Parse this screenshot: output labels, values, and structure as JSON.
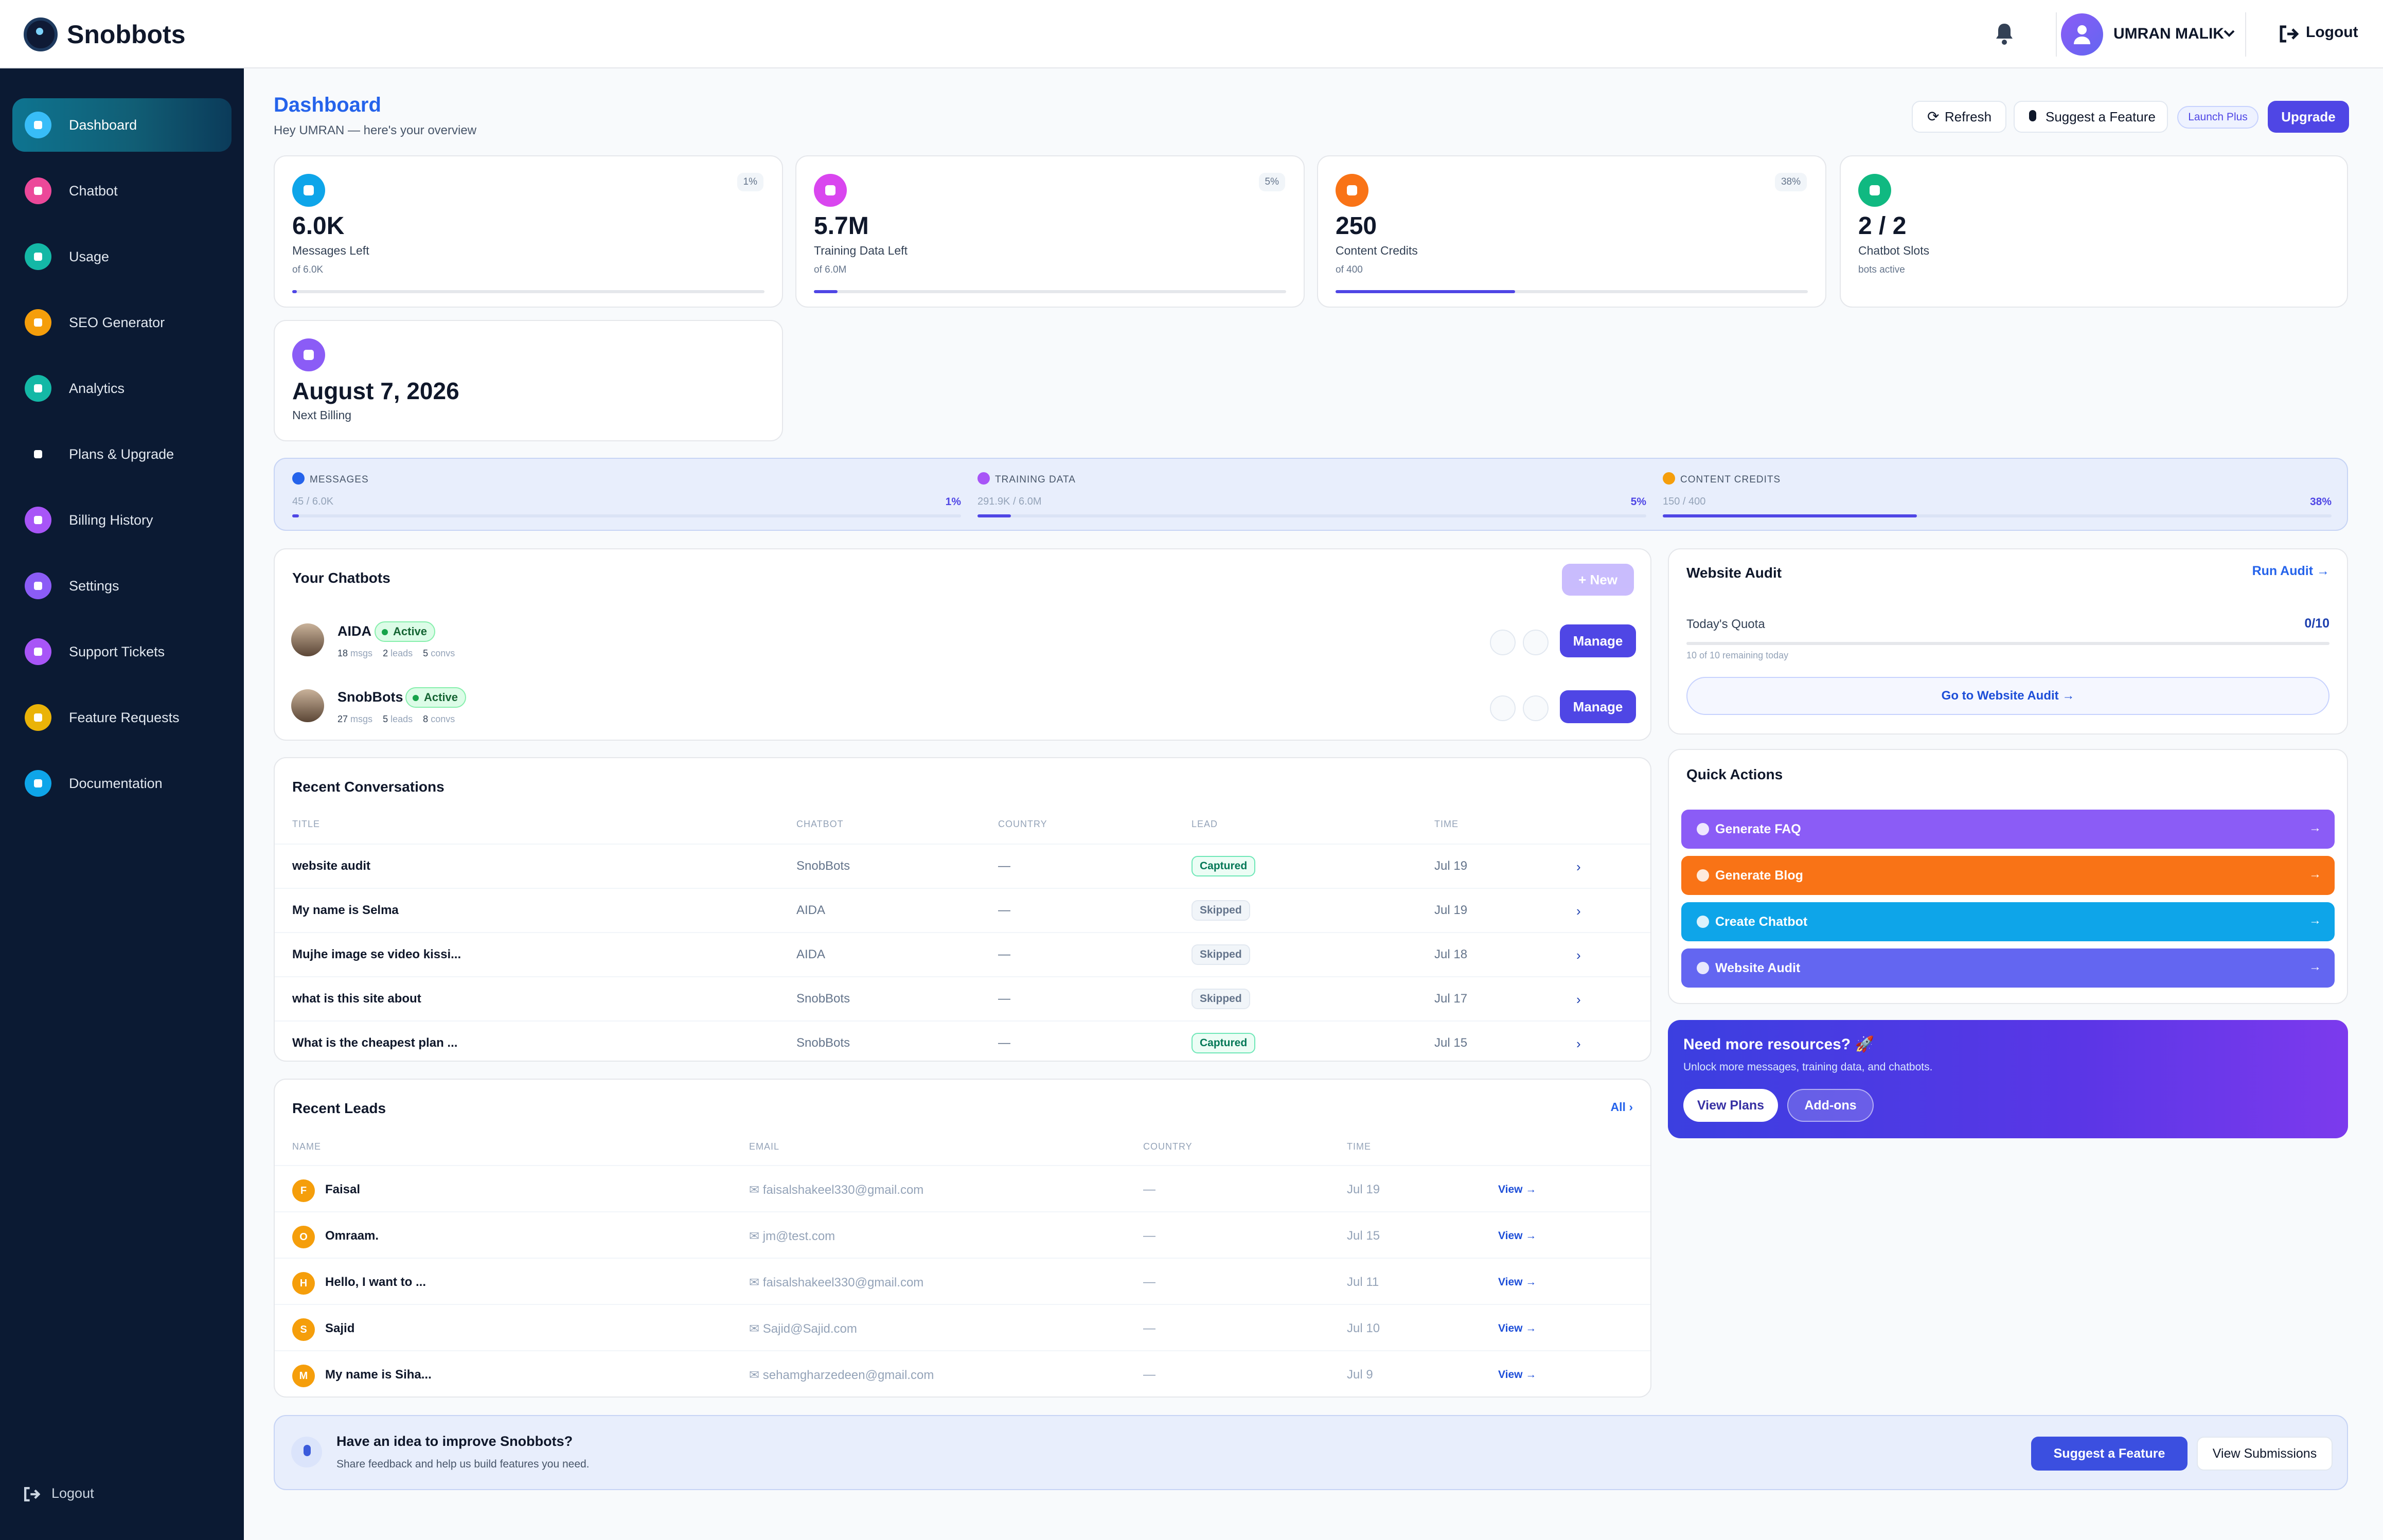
{
  "app": {
    "name": "Snobbots"
  },
  "topbar": {
    "user_name": "UMRAN MALIK",
    "logout_label": "Logout"
  },
  "sidebar": {
    "items": [
      {
        "label": "Dashboard",
        "color": "#38bdf8"
      },
      {
        "label": "Chatbot",
        "color": "#ec4899"
      },
      {
        "label": "Usage",
        "color": "#14b8a6"
      },
      {
        "label": "SEO Generator",
        "color": "#f59e0b"
      },
      {
        "label": "Analytics",
        "color": "#14b8a6"
      },
      {
        "label": "Plans & Upgrade",
        "color": "#0b1a33"
      },
      {
        "label": "Billing History",
        "color": "#a855f7"
      },
      {
        "label": "Settings",
        "color": "#8b5cf6"
      },
      {
        "label": "Support Tickets",
        "color": "#a855f7"
      },
      {
        "label": "Feature Requests",
        "color": "#eab308"
      },
      {
        "label": "Documentation",
        "color": "#0ea5e9"
      }
    ],
    "logout_label": "Logout"
  },
  "header": {
    "title": "Dashboard",
    "subtitle": "Hey UMRAN — here's your overview",
    "refresh_label": "Refresh",
    "suggest_label": "Suggest a Feature",
    "plan_badge": "Launch Plus",
    "upgrade_label": "Upgrade"
  },
  "stats": [
    {
      "value": "6.0K",
      "label": "Messages Left",
      "sub": "of 6.0K",
      "pct": "1%",
      "progress": 0.01,
      "color": "#0ea5e9"
    },
    {
      "value": "5.7M",
      "label": "Training Data Left",
      "sub": "of 6.0M",
      "pct": "5%",
      "progress": 0.05,
      "color": "#d946ef"
    },
    {
      "value": "250",
      "label": "Content Credits",
      "sub": "of 400",
      "pct": "38%",
      "progress": 0.38,
      "color": "#f97316"
    },
    {
      "value": "2 / 2",
      "label": "Chatbot Slots",
      "sub": "bots active",
      "color": "#10b981"
    },
    {
      "value": "August 7, 2026",
      "label": "Next Billing",
      "color": "#8b5cf6"
    }
  ],
  "usage": [
    {
      "label": "MESSAGES",
      "count": "45 / 6.0K",
      "pct": "1%",
      "progress": 0.01,
      "color": "#2563eb"
    },
    {
      "label": "TRAINING DATA",
      "count": "291.9K / 6.0M",
      "pct": "5%",
      "progress": 0.05,
      "color": "#a855f7"
    },
    {
      "label": "CONTENT CREDITS",
      "count": "150 / 400",
      "pct": "38%",
      "progress": 0.38,
      "color": "#f59e0b"
    }
  ],
  "chatbots": {
    "title": "Your Chatbots",
    "new_label": "+ New",
    "items": [
      {
        "name": "AIDA",
        "status": "Active",
        "msgs": "18",
        "leads": "2",
        "convs": "5"
      },
      {
        "name": "SnobBots",
        "status": "Active",
        "msgs": "27",
        "leads": "5",
        "convs": "8"
      }
    ],
    "manage_label": "Manage",
    "msgs_word": "msgs",
    "leads_word": "leads",
    "convs_word": "convs"
  },
  "conversations": {
    "title": "Recent Conversations",
    "columns": [
      "TITLE",
      "CHATBOT",
      "COUNTRY",
      "LEAD",
      "TIME"
    ],
    "rows": [
      {
        "title": "website audit",
        "chatbot": "SnobBots",
        "country": "—",
        "lead": "Captured",
        "time": "Jul 19"
      },
      {
        "title": "My name is Selma",
        "chatbot": "AIDA",
        "country": "—",
        "lead": "Skipped",
        "time": "Jul 19"
      },
      {
        "title": "Mujhe image se video kissi...",
        "chatbot": "AIDA",
        "country": "—",
        "lead": "Skipped",
        "time": "Jul 18"
      },
      {
        "title": "what is this site about",
        "chatbot": "SnobBots",
        "country": "—",
        "lead": "Skipped",
        "time": "Jul 17"
      },
      {
        "title": "What is the cheapest plan ...",
        "chatbot": "SnobBots",
        "country": "—",
        "lead": "Captured",
        "time": "Jul 15"
      }
    ]
  },
  "leads": {
    "title": "Recent Leads",
    "all_label": "All ›",
    "columns": [
      "NAME",
      "EMAIL",
      "COUNTRY",
      "TIME"
    ],
    "view_label": "View →",
    "rows": [
      {
        "initial": "F",
        "name": "Faisal",
        "email": "faisalshakeel330@gmail.com",
        "country": "—",
        "time": "Jul 19"
      },
      {
        "initial": "O",
        "name": "Omraam.",
        "email": "jm@test.com",
        "country": "—",
        "time": "Jul 15"
      },
      {
        "initial": "H",
        "name": "Hello, I want to ...",
        "email": "faisalshakeel330@gmail.com",
        "country": "—",
        "time": "Jul 11"
      },
      {
        "initial": "S",
        "name": "Sajid",
        "email": "Sajid@Sajid.com",
        "country": "—",
        "time": "Jul 10"
      },
      {
        "initial": "M",
        "name": "My name is Siha...",
        "email": "sehamgharzedeen@gmail.com",
        "country": "—",
        "time": "Jul 9"
      }
    ]
  },
  "audit": {
    "title": "Website Audit",
    "run_label": "Run Audit →",
    "quota_label": "Today's Quota",
    "quota_value": "0/10",
    "remaining": "10 of 10 remaining today",
    "go_label": "Go to Website Audit →"
  },
  "quick_actions": {
    "title": "Quick Actions",
    "items": [
      {
        "label": "Generate FAQ",
        "color": "#8b5cf6"
      },
      {
        "label": "Generate Blog",
        "color": "#f97316"
      },
      {
        "label": "Create Chatbot",
        "color": "#0ea5e9"
      },
      {
        "label": "Website Audit",
        "color": "#6366f1"
      }
    ]
  },
  "resources": {
    "title": "Need more resources? 🚀",
    "subtitle": "Unlock more messages, training data, and chatbots.",
    "plans_label": "View Plans",
    "addons_label": "Add-ons"
  },
  "idea": {
    "title": "Have an idea to improve Snobbots?",
    "subtitle": "Share feedback and help us build features you need.",
    "suggest_label": "Suggest a Feature",
    "submissions_label": "View Submissions"
  }
}
